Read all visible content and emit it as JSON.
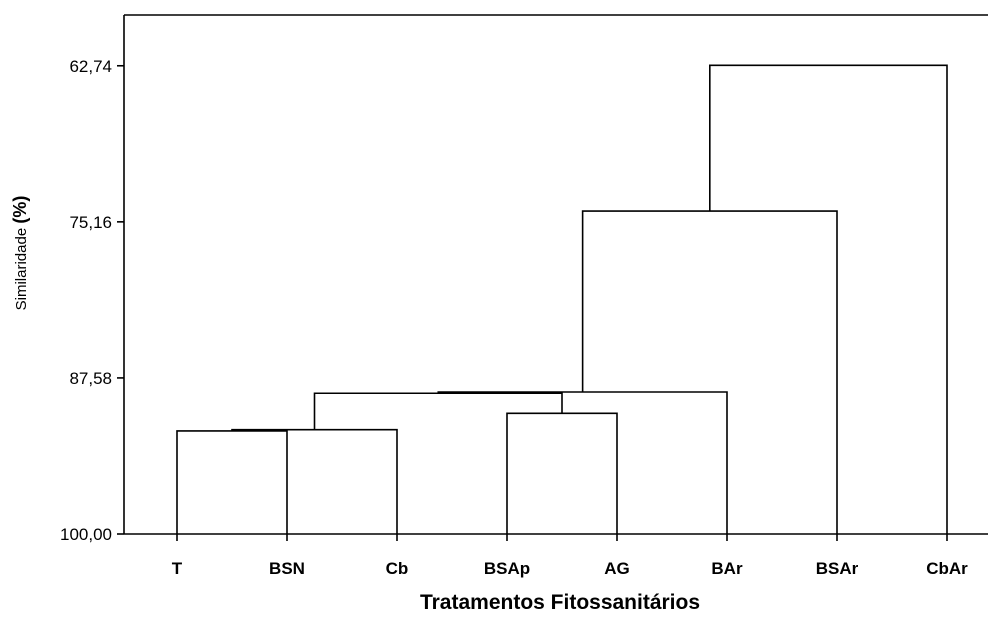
{
  "chart_data": {
    "type": "dendrogram",
    "xlabel": "Tratamentos Fitossanitários",
    "ylabel": "Similaridade",
    "ylabel_unit": "(%)",
    "yticks": [
      "62,74",
      "75,16",
      "87,58",
      "100,00"
    ],
    "ytick_values": [
      62.74,
      75.16,
      87.58,
      100.0
    ],
    "ylim": [
      58.7,
      100.0
    ],
    "y_inverted": true,
    "categories": [
      "T",
      "BSN",
      "Cb",
      "BSAp",
      "AG",
      "BAr",
      "BSAr",
      "CbAr"
    ],
    "merges": [
      {
        "left": "T",
        "right": "BSN",
        "similarity": 91.8
      },
      {
        "left": "T+BSN",
        "right": "Cb",
        "similarity": 91.7
      },
      {
        "left": "BSAp",
        "right": "AG",
        "similarity": 90.4
      },
      {
        "left": "T+BSN+Cb",
        "right": "BSAp+AG",
        "similarity": 88.8
      },
      {
        "left": "T+BSN+Cb+BSAp+AG",
        "right": "BAr",
        "similarity": 88.7
      },
      {
        "left": "T+BSN+Cb+BSAp+AG+BAr",
        "right": "BSAr",
        "similarity": 74.3
      },
      {
        "left": "T+BSN+Cb+BSAp+AG+BAr+BSAr",
        "right": "CbAr",
        "similarity": 62.7
      }
    ]
  }
}
